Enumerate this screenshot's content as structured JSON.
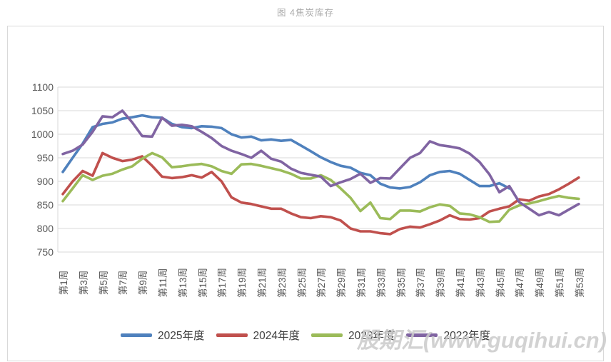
{
  "page": {
    "caption": "图 4焦炭库存",
    "watermark": "股期汇(www.guqihui.cn)"
  },
  "chart_data": {
    "type": "line",
    "title": "图 4焦炭库存",
    "xlabel": "",
    "ylabel": "",
    "x_range": [
      1,
      53
    ],
    "x_tick_labels": [
      "第1周",
      "第3周",
      "第5周",
      "第7周",
      "第9周",
      "第11周",
      "第13周",
      "第15周",
      "第17周",
      "第19周",
      "第21周",
      "第23周",
      "第25周",
      "第27周",
      "第29周",
      "第31周",
      "第33周",
      "第35周",
      "第37周",
      "第39周",
      "第41周",
      "第43周",
      "第45周",
      "第47周",
      "第49周",
      "第51周",
      "第53周"
    ],
    "ylim": [
      750,
      1100
    ],
    "y_ticks": [
      750,
      800,
      850,
      900,
      950,
      1000,
      1050,
      1100
    ],
    "grid": true,
    "legend_position": "bottom",
    "colors": {
      "grid": "#d9d9d9",
      "axis_text": "#595959"
    },
    "series": [
      {
        "name": "2025年度",
        "color": "#4F81BD",
        "values": [
          920,
          950,
          980,
          1015,
          1022,
          1025,
          1033,
          1036,
          1040,
          1036,
          1035,
          1022,
          1015,
          1013,
          1017,
          1016,
          1013,
          1000,
          993,
          995,
          987,
          989,
          986,
          988,
          976,
          964,
          951,
          941,
          933,
          929,
          918,
          913,
          895,
          887,
          885,
          888,
          898,
          913,
          920,
          922,
          916,
          903,
          890,
          890,
          896,
          885,
          null,
          null,
          null,
          null,
          null,
          null,
          null
        ]
      },
      {
        "name": "2024年度",
        "color": "#C0504D",
        "values": [
          873,
          900,
          922,
          912,
          960,
          950,
          943,
          946,
          953,
          933,
          910,
          907,
          909,
          913,
          908,
          920,
          900,
          866,
          855,
          852,
          847,
          842,
          842,
          832,
          824,
          822,
          826,
          824,
          817,
          800,
          794,
          794,
          790,
          788,
          799,
          804,
          802,
          809,
          817,
          828,
          820,
          819,
          822,
          836,
          842,
          847,
          862,
          859,
          868,
          873,
          883,
          895,
          908
        ]
      },
      {
        "name": "2023年度",
        "color": "#9BBB59",
        "values": [
          858,
          885,
          913,
          903,
          912,
          916,
          925,
          932,
          948,
          960,
          951,
          930,
          932,
          935,
          937,
          932,
          922,
          916,
          936,
          937,
          933,
          928,
          923,
          916,
          906,
          906,
          913,
          903,
          885,
          865,
          837,
          855,
          822,
          820,
          838,
          838,
          836,
          845,
          851,
          848,
          832,
          830,
          824,
          814,
          815,
          840,
          849,
          853,
          858,
          864,
          869,
          865,
          863
        ]
      },
      {
        "name": "2022年度",
        "color": "#8064A2",
        "values": [
          958,
          965,
          978,
          1005,
          1038,
          1036,
          1050,
          1025,
          996,
          995,
          1035,
          1018,
          1020,
          1017,
          1005,
          992,
          975,
          965,
          958,
          950,
          965,
          948,
          942,
          927,
          918,
          914,
          910,
          890,
          898,
          905,
          916,
          897,
          907,
          906,
          928,
          950,
          960,
          985,
          977,
          974,
          970,
          959,
          941,
          915,
          877,
          890,
          856,
          842,
          828,
          835,
          828,
          840,
          852
        ]
      }
    ]
  }
}
